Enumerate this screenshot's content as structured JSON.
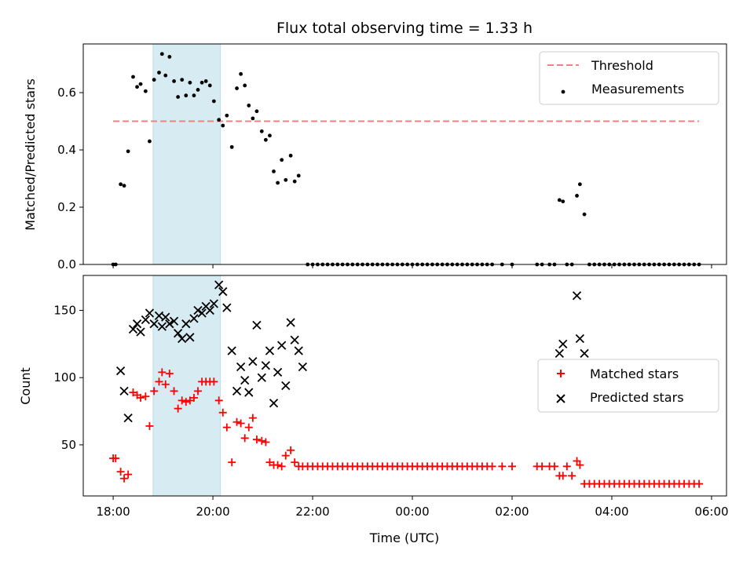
{
  "chart_data": {
    "type": "scatter",
    "title": "Flux total observing time = 1.33 h",
    "xlabel": "Time (UTC)",
    "x_tick_labels": [
      "18:00",
      "20:00",
      "22:00",
      "00:00",
      "02:00",
      "04:00",
      "06:00"
    ],
    "x_tick_hours": [
      0,
      2,
      4,
      6,
      8,
      10,
      12
    ],
    "xlim_hours_after_18": [
      -0.6,
      12.3
    ],
    "highlight_span_hours_after_18": [
      0.8,
      2.15
    ],
    "highlight_color": "#add8e6",
    "top": {
      "ylabel": "Matched/Predicted stars",
      "ylim": [
        0,
        0.77
      ],
      "yticks": [
        0.0,
        0.2,
        0.4,
        0.6
      ],
      "y_tick_labels": [
        "0.0",
        "0.2",
        "0.4",
        "0.6"
      ],
      "threshold": {
        "name": "Threshold",
        "value": 0.5,
        "x_range_hours": [
          0,
          11.75
        ],
        "color": "#f08080"
      },
      "measurements_name": "Measurements",
      "measurements": [
        [
          0,
          0
        ],
        [
          0.05,
          0
        ],
        [
          0.15,
          0.28
        ],
        [
          0.22,
          0.275
        ],
        [
          0.3,
          0.395
        ],
        [
          0.4,
          0.655
        ],
        [
          0.48,
          0.62
        ],
        [
          0.55,
          0.63
        ],
        [
          0.65,
          0.605
        ],
        [
          0.73,
          0.43
        ],
        [
          0.82,
          0.645
        ],
        [
          0.92,
          0.67
        ],
        [
          0.98,
          0.735
        ],
        [
          1.05,
          0.66
        ],
        [
          1.13,
          0.725
        ],
        [
          1.22,
          0.64
        ],
        [
          1.3,
          0.585
        ],
        [
          1.38,
          0.645
        ],
        [
          1.46,
          0.59
        ],
        [
          1.54,
          0.635
        ],
        [
          1.62,
          0.59
        ],
        [
          1.7,
          0.61
        ],
        [
          1.78,
          0.635
        ],
        [
          1.86,
          0.64
        ],
        [
          1.94,
          0.625
        ],
        [
          2.02,
          0.57
        ],
        [
          2.12,
          0.505
        ],
        [
          2.2,
          0.485
        ],
        [
          2.28,
          0.52
        ],
        [
          2.38,
          0.41
        ],
        [
          2.48,
          0.615
        ],
        [
          2.56,
          0.665
        ],
        [
          2.64,
          0.625
        ],
        [
          2.72,
          0.555
        ],
        [
          2.8,
          0.51
        ],
        [
          2.88,
          0.535
        ],
        [
          2.98,
          0.465
        ],
        [
          3.06,
          0.435
        ],
        [
          3.14,
          0.45
        ],
        [
          3.22,
          0.325
        ],
        [
          3.3,
          0.285
        ],
        [
          3.38,
          0.365
        ],
        [
          3.46,
          0.295
        ],
        [
          3.56,
          0.38
        ],
        [
          3.64,
          0.29
        ],
        [
          3.72,
          0.31
        ],
        [
          3.9,
          0
        ],
        [
          4.0,
          0
        ],
        [
          4.1,
          0
        ],
        [
          4.2,
          0
        ],
        [
          4.3,
          0
        ],
        [
          4.4,
          0
        ],
        [
          4.5,
          0
        ],
        [
          4.6,
          0
        ],
        [
          4.7,
          0
        ],
        [
          4.8,
          0
        ],
        [
          4.9,
          0
        ],
        [
          5.0,
          0
        ],
        [
          5.1,
          0
        ],
        [
          5.2,
          0
        ],
        [
          5.3,
          0
        ],
        [
          5.4,
          0
        ],
        [
          5.5,
          0
        ],
        [
          5.6,
          0
        ],
        [
          5.7,
          0
        ],
        [
          5.8,
          0
        ],
        [
          5.9,
          0
        ],
        [
          6.0,
          0
        ],
        [
          6.1,
          0
        ],
        [
          6.2,
          0
        ],
        [
          6.3,
          0
        ],
        [
          6.4,
          0
        ],
        [
          6.5,
          0
        ],
        [
          6.6,
          0
        ],
        [
          6.7,
          0
        ],
        [
          6.8,
          0
        ],
        [
          6.9,
          0
        ],
        [
          7.0,
          0
        ],
        [
          7.1,
          0
        ],
        [
          7.2,
          0
        ],
        [
          7.3,
          0
        ],
        [
          7.4,
          0
        ],
        [
          7.5,
          0
        ],
        [
          7.6,
          0
        ],
        [
          7.8,
          0
        ],
        [
          8.0,
          0
        ],
        [
          8.5,
          0
        ],
        [
          8.6,
          0
        ],
        [
          8.75,
          0
        ],
        [
          8.85,
          0
        ],
        [
          8.95,
          0.225
        ],
        [
          9.02,
          0.22
        ],
        [
          9.1,
          0
        ],
        [
          9.2,
          0
        ],
        [
          9.3,
          0.24
        ],
        [
          9.36,
          0.28
        ],
        [
          9.45,
          0.175
        ],
        [
          9.55,
          0
        ],
        [
          9.65,
          0
        ],
        [
          9.75,
          0
        ],
        [
          9.85,
          0
        ],
        [
          9.95,
          0
        ],
        [
          10.05,
          0
        ],
        [
          10.15,
          0
        ],
        [
          10.25,
          0
        ],
        [
          10.35,
          0
        ],
        [
          10.45,
          0
        ],
        [
          10.55,
          0
        ],
        [
          10.65,
          0
        ],
        [
          10.75,
          0
        ],
        [
          10.85,
          0
        ],
        [
          10.95,
          0
        ],
        [
          11.05,
          0
        ],
        [
          11.15,
          0
        ],
        [
          11.25,
          0
        ],
        [
          11.35,
          0
        ],
        [
          11.45,
          0
        ],
        [
          11.55,
          0
        ],
        [
          11.65,
          0
        ],
        [
          11.75,
          0
        ]
      ]
    },
    "bottom": {
      "ylabel": "Count",
      "ylim": [
        12,
        176
      ],
      "yticks": [
        50,
        100,
        150
      ],
      "y_tick_labels": [
        "50",
        "100",
        "150"
      ],
      "series": [
        {
          "name": "Matched stars",
          "marker": "plus",
          "color": "#ff0000",
          "points": [
            [
              0,
              40
            ],
            [
              0.05,
              40
            ],
            [
              0.15,
              30
            ],
            [
              0.22,
              25
            ],
            [
              0.3,
              28
            ],
            [
              0.4,
              89
            ],
            [
              0.48,
              87
            ],
            [
              0.55,
              85
            ],
            [
              0.65,
              86
            ],
            [
              0.73,
              64
            ],
            [
              0.82,
              90
            ],
            [
              0.92,
              97
            ],
            [
              0.98,
              104
            ],
            [
              1.05,
              95
            ],
            [
              1.13,
              103
            ],
            [
              1.22,
              90
            ],
            [
              1.3,
              77
            ],
            [
              1.38,
              83
            ],
            [
              1.46,
              82
            ],
            [
              1.54,
              83
            ],
            [
              1.62,
              85
            ],
            [
              1.7,
              90
            ],
            [
              1.78,
              97
            ],
            [
              1.86,
              97
            ],
            [
              1.94,
              97
            ],
            [
              2.02,
              97
            ],
            [
              2.12,
              83
            ],
            [
              2.2,
              74
            ],
            [
              2.28,
              63
            ],
            [
              2.38,
              37
            ],
            [
              2.48,
              67
            ],
            [
              2.56,
              66
            ],
            [
              2.64,
              55
            ],
            [
              2.72,
              63
            ],
            [
              2.8,
              70
            ],
            [
              2.88,
              54
            ],
            [
              2.98,
              53
            ],
            [
              3.06,
              52
            ],
            [
              3.14,
              37
            ],
            [
              3.22,
              35
            ],
            [
              3.3,
              35
            ],
            [
              3.38,
              34
            ],
            [
              3.46,
              42
            ],
            [
              3.56,
              46
            ],
            [
              3.64,
              37
            ],
            [
              3.72,
              34
            ],
            [
              3.8,
              34
            ],
            [
              3.9,
              34
            ],
            [
              4.0,
              34
            ],
            [
              4.1,
              34
            ],
            [
              4.2,
              34
            ],
            [
              4.3,
              34
            ],
            [
              4.4,
              34
            ],
            [
              4.5,
              34
            ],
            [
              4.6,
              34
            ],
            [
              4.7,
              34
            ],
            [
              4.8,
              34
            ],
            [
              4.9,
              34
            ],
            [
              5.0,
              34
            ],
            [
              5.1,
              34
            ],
            [
              5.2,
              34
            ],
            [
              5.3,
              34
            ],
            [
              5.4,
              34
            ],
            [
              5.5,
              34
            ],
            [
              5.6,
              34
            ],
            [
              5.7,
              34
            ],
            [
              5.8,
              34
            ],
            [
              5.9,
              34
            ],
            [
              6.0,
              34
            ],
            [
              6.1,
              34
            ],
            [
              6.2,
              34
            ],
            [
              6.3,
              34
            ],
            [
              6.4,
              34
            ],
            [
              6.5,
              34
            ],
            [
              6.6,
              34
            ],
            [
              6.7,
              34
            ],
            [
              6.8,
              34
            ],
            [
              6.9,
              34
            ],
            [
              7.0,
              34
            ],
            [
              7.1,
              34
            ],
            [
              7.2,
              34
            ],
            [
              7.3,
              34
            ],
            [
              7.4,
              34
            ],
            [
              7.5,
              34
            ],
            [
              7.6,
              34
            ],
            [
              7.8,
              34
            ],
            [
              8.0,
              34
            ],
            [
              8.5,
              34
            ],
            [
              8.6,
              34
            ],
            [
              8.75,
              34
            ],
            [
              8.85,
              34
            ],
            [
              8.95,
              27
            ],
            [
              9.02,
              27
            ],
            [
              9.1,
              34
            ],
            [
              9.2,
              27
            ],
            [
              9.3,
              38
            ],
            [
              9.36,
              35
            ],
            [
              9.45,
              21
            ],
            [
              9.55,
              21
            ],
            [
              9.65,
              21
            ],
            [
              9.75,
              21
            ],
            [
              9.85,
              21
            ],
            [
              9.95,
              21
            ],
            [
              10.05,
              21
            ],
            [
              10.15,
              21
            ],
            [
              10.25,
              21
            ],
            [
              10.35,
              21
            ],
            [
              10.45,
              21
            ],
            [
              10.55,
              21
            ],
            [
              10.65,
              21
            ],
            [
              10.75,
              21
            ],
            [
              10.85,
              21
            ],
            [
              10.95,
              21
            ],
            [
              11.05,
              21
            ],
            [
              11.15,
              21
            ],
            [
              11.25,
              21
            ],
            [
              11.35,
              21
            ],
            [
              11.45,
              21
            ],
            [
              11.55,
              21
            ],
            [
              11.65,
              21
            ],
            [
              11.75,
              21
            ]
          ]
        },
        {
          "name": "Predicted stars",
          "marker": "x",
          "color": "#000000",
          "points": [
            [
              0.15,
              105
            ],
            [
              0.22,
              90
            ],
            [
              0.3,
              70
            ],
            [
              0.4,
              136
            ],
            [
              0.48,
              140
            ],
            [
              0.55,
              134
            ],
            [
              0.65,
              143
            ],
            [
              0.73,
              148
            ],
            [
              0.82,
              140
            ],
            [
              0.92,
              146
            ],
            [
              0.98,
              138
            ],
            [
              1.05,
              145
            ],
            [
              1.13,
              140
            ],
            [
              1.22,
              142
            ],
            [
              1.3,
              133
            ],
            [
              1.38,
              129
            ],
            [
              1.46,
              140
            ],
            [
              1.54,
              130
            ],
            [
              1.62,
              144
            ],
            [
              1.7,
              150
            ],
            [
              1.78,
              148
            ],
            [
              1.86,
              153
            ],
            [
              1.94,
              150
            ],
            [
              2.02,
              155
            ],
            [
              2.12,
              169
            ],
            [
              2.2,
              164
            ],
            [
              2.28,
              152
            ],
            [
              2.38,
              120
            ],
            [
              2.48,
              90
            ],
            [
              2.56,
              108
            ],
            [
              2.64,
              98
            ],
            [
              2.72,
              89
            ],
            [
              2.8,
              112
            ],
            [
              2.88,
              139
            ],
            [
              2.98,
              100
            ],
            [
              3.06,
              109
            ],
            [
              3.14,
              120
            ],
            [
              3.22,
              81
            ],
            [
              3.3,
              104
            ],
            [
              3.38,
              124
            ],
            [
              3.46,
              94
            ],
            [
              3.56,
              141
            ],
            [
              3.64,
              128
            ],
            [
              3.72,
              120
            ],
            [
              3.8,
              108
            ],
            [
              8.95,
              118
            ],
            [
              9.02,
              125
            ],
            [
              9.3,
              161
            ],
            [
              9.36,
              129
            ],
            [
              9.45,
              118
            ]
          ]
        }
      ]
    }
  }
}
